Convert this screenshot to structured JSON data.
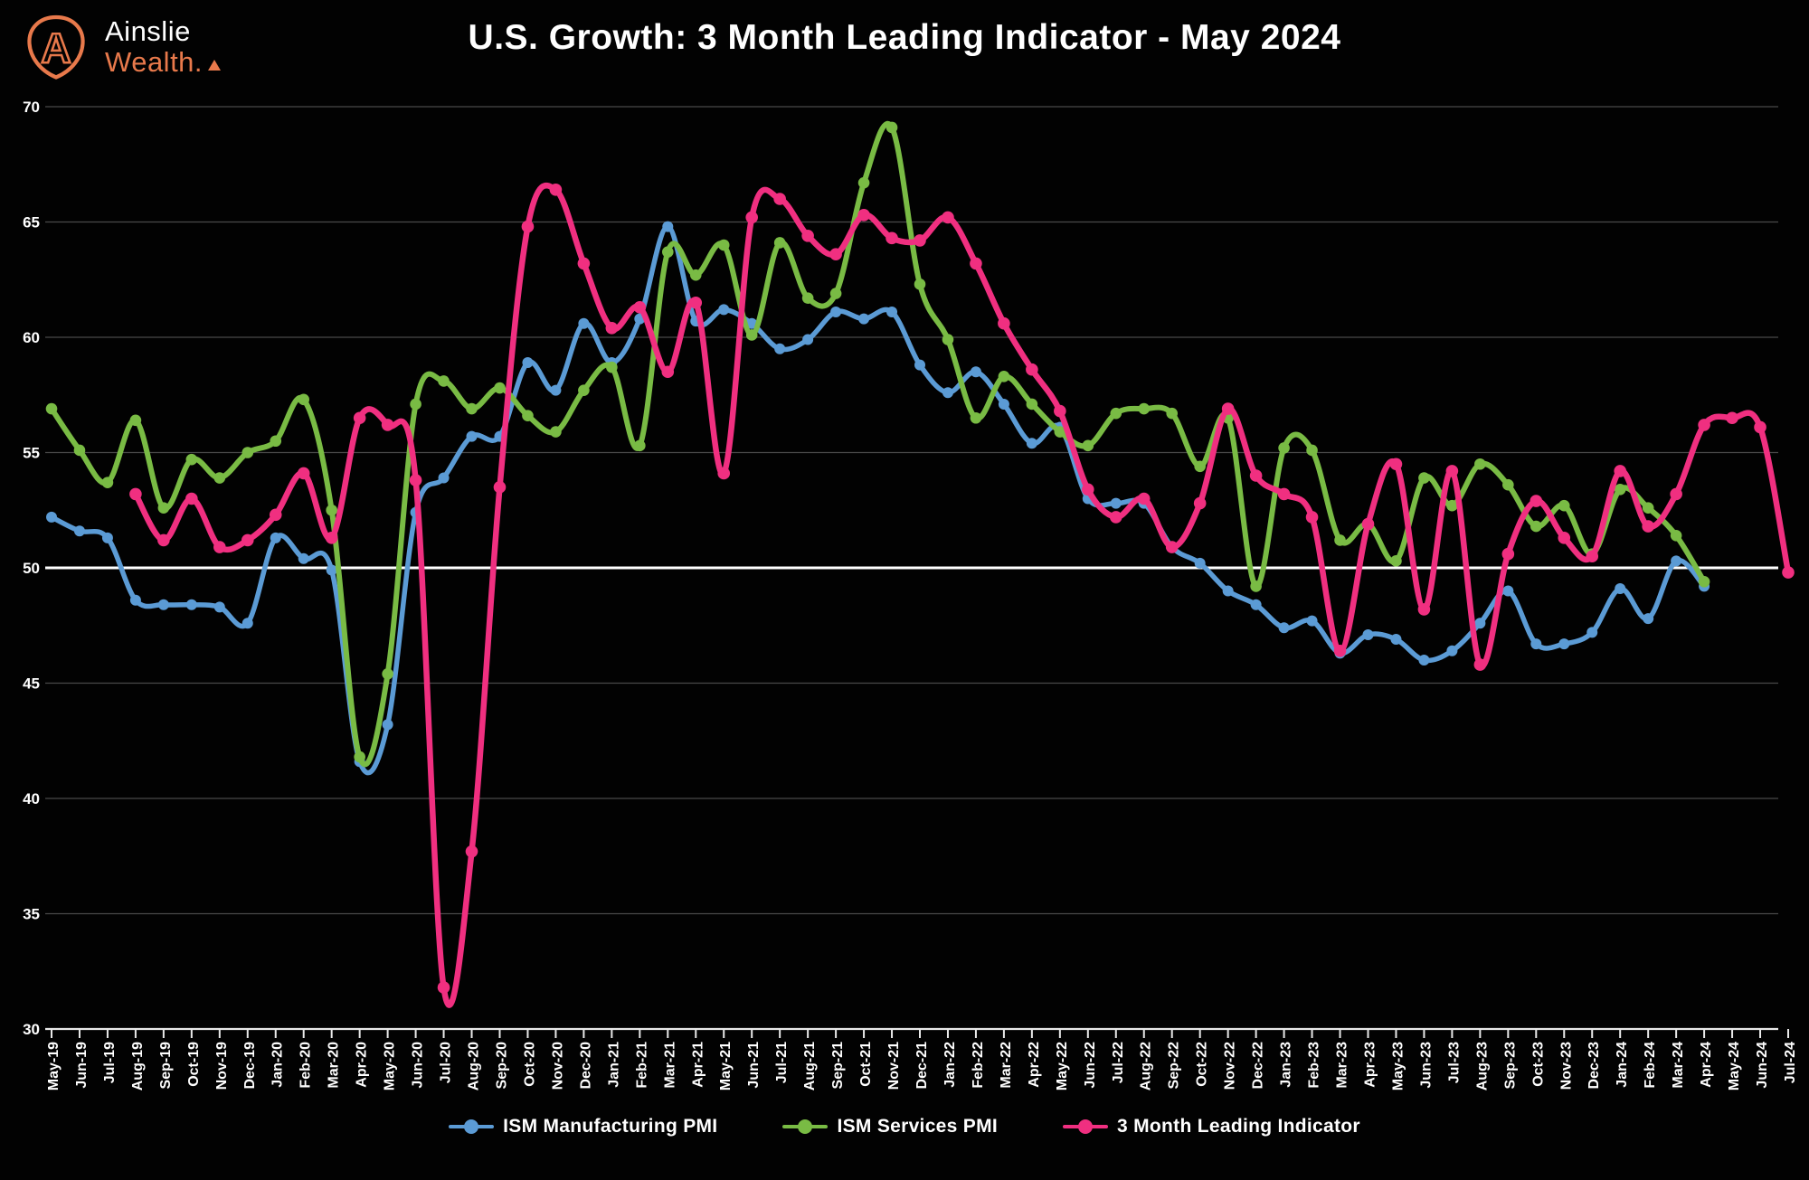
{
  "brand": {
    "line1": "Ainslie",
    "line2": "Wealth.",
    "logo_letter": "A",
    "accent_color": "#E8794B"
  },
  "title": "U.S. Growth: 3 Month Leading Indicator - May 2024",
  "chart_data": {
    "type": "line",
    "title": "U.S. Growth: 3 Month Leading Indicator - May 2024",
    "background_color": "#020202",
    "grid": true,
    "gridline_color": "#4a4a4a",
    "reference_line": 50,
    "reference_line_color": "#ffffff",
    "text_color": "#ffffff",
    "legend_position": "bottom",
    "ylim": [
      30,
      70
    ],
    "yticks": [
      30,
      35,
      40,
      45,
      50,
      55,
      60,
      65,
      70
    ],
    "x_labels": [
      "May-19",
      "Jun-19",
      "Jul-19",
      "Aug-19",
      "Sep-19",
      "Oct-19",
      "Nov-19",
      "Dec-19",
      "Jan-20",
      "Feb-20",
      "Mar-20",
      "Apr-20",
      "May-20",
      "Jun-20",
      "Jul-20",
      "Aug-20",
      "Sep-20",
      "Oct-20",
      "Nov-20",
      "Dec-20",
      "Jan-21",
      "Feb-21",
      "Mar-21",
      "Apr-21",
      "May-21",
      "Jun-21",
      "Jul-21",
      "Aug-21",
      "Sep-21",
      "Oct-21",
      "Nov-21",
      "Dec-21",
      "Jan-22",
      "Feb-22",
      "Mar-22",
      "Apr-22",
      "May-22",
      "Jun-22",
      "Jul-22",
      "Aug-22",
      "Sep-22",
      "Oct-22",
      "Nov-22",
      "Dec-22",
      "Jan-23",
      "Feb-23",
      "Mar-23",
      "Apr-23",
      "May-23",
      "Jun-23",
      "Jul-23",
      "Aug-23",
      "Sep-23",
      "Oct-23",
      "Nov-23",
      "Dec-23",
      "Jan-24",
      "Feb-24",
      "Mar-24",
      "Apr-24",
      "May-24",
      "Jun-24",
      "Jul-24"
    ],
    "series": [
      {
        "name": "ISM Manufacturing PMI",
        "color": "#5B9BD5",
        "start_index": 0,
        "values": [
          52.2,
          51.6,
          51.3,
          48.6,
          48.4,
          48.4,
          48.3,
          47.6,
          51.3,
          50.4,
          49.9,
          41.6,
          43.2,
          52.4,
          53.9,
          55.7,
          55.7,
          58.9,
          57.7,
          60.6,
          58.9,
          60.8,
          64.8,
          60.7,
          61.2,
          60.6,
          59.5,
          59.9,
          61.1,
          60.8,
          61.1,
          58.8,
          57.6,
          58.5,
          57.1,
          55.4,
          56.1,
          53.0,
          52.8,
          52.8,
          50.9,
          50.2,
          49.0,
          48.4,
          47.4,
          47.7,
          46.3,
          47.1,
          46.9,
          46.0,
          46.4,
          47.6,
          49.0,
          46.7,
          46.7,
          47.2,
          49.1,
          47.8,
          50.3,
          49.2
        ]
      },
      {
        "name": "ISM Services PMI",
        "color": "#79BB44",
        "start_index": 0,
        "values": [
          56.9,
          55.1,
          53.7,
          56.4,
          52.6,
          54.7,
          53.9,
          55.0,
          55.5,
          57.3,
          52.5,
          41.8,
          45.4,
          57.1,
          58.1,
          56.9,
          57.8,
          56.6,
          55.9,
          57.7,
          58.7,
          55.3,
          63.7,
          62.7,
          64.0,
          60.1,
          64.1,
          61.7,
          61.9,
          66.7,
          69.1,
          62.3,
          59.9,
          56.5,
          58.3,
          57.1,
          55.9,
          55.3,
          56.7,
          56.9,
          56.7,
          54.4,
          56.5,
          49.2,
          55.2,
          55.1,
          51.2,
          51.9,
          50.3,
          53.9,
          52.7,
          54.5,
          53.6,
          51.8,
          52.7,
          50.6,
          53.4,
          52.6,
          51.4,
          49.4
        ]
      },
      {
        "name": "3 Month Leading Indicator",
        "color": "#F02F80",
        "start_index": 3,
        "values": [
          53.2,
          51.2,
          53.0,
          50.9,
          51.2,
          52.3,
          54.1,
          51.3,
          56.5,
          56.2,
          53.8,
          31.8,
          37.7,
          53.5,
          64.8,
          66.4,
          63.2,
          60.4,
          61.3,
          58.5,
          61.5,
          54.1,
          65.2,
          66.0,
          64.4,
          63.6,
          65.3,
          64.3,
          64.2,
          65.2,
          63.2,
          60.6,
          58.6,
          56.8,
          53.4,
          52.2,
          53.0,
          50.9,
          52.8,
          56.9,
          54.0,
          53.2,
          52.2,
          46.4,
          51.9,
          54.5,
          48.2,
          54.2,
          45.8,
          50.6,
          52.9,
          51.3,
          50.5,
          54.2,
          51.8,
          53.2,
          56.2,
          56.5,
          56.1,
          49.8
        ]
      }
    ]
  }
}
